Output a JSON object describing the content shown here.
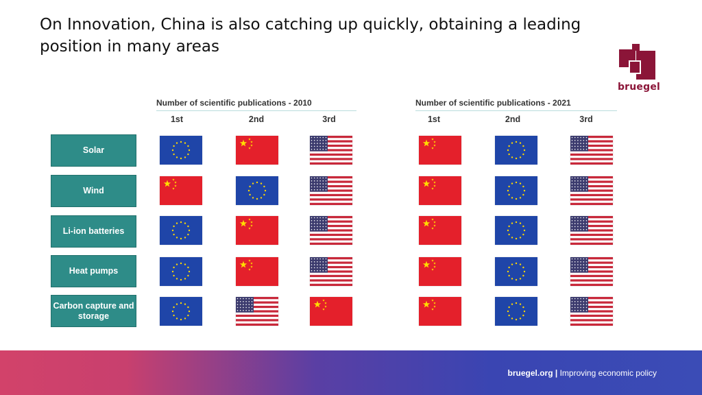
{
  "slide": {
    "title": "On Innovation, China is also catching up quickly, obtaining a leading position in many areas",
    "logo_text": "bruegel",
    "footer_site": "bruegel.org",
    "footer_separator": "|",
    "footer_tagline": "Improving economic policy"
  },
  "colors": {
    "teal": "#2e8c88",
    "brand": "#8b1538"
  },
  "table": {
    "categories": [
      "Solar",
      "Wind",
      "Li-ion batteries",
      "Heat pumps",
      "Carbon capture and storage"
    ],
    "panels": [
      {
        "title": "Number of scientific publications - 2010",
        "ranks": [
          "1st",
          "2nd",
          "3rd"
        ],
        "rows": [
          [
            "eu-flag",
            "china-flag",
            "us-flag"
          ],
          [
            "china-flag",
            "eu-flag",
            "us-flag"
          ],
          [
            "eu-flag",
            "china-flag",
            "us-flag"
          ],
          [
            "eu-flag",
            "china-flag",
            "us-flag"
          ],
          [
            "eu-flag",
            "us-flag",
            "china-flag"
          ]
        ]
      },
      {
        "title": "Number of scientific publications - 2021",
        "ranks": [
          "1st",
          "2nd",
          "3rd"
        ],
        "rows": [
          [
            "china-flag",
            "eu-flag",
            "us-flag"
          ],
          [
            "china-flag",
            "eu-flag",
            "us-flag"
          ],
          [
            "china-flag",
            "eu-flag",
            "us-flag"
          ],
          [
            "china-flag",
            "eu-flag",
            "us-flag"
          ],
          [
            "china-flag",
            "eu-flag",
            "us-flag"
          ]
        ]
      }
    ]
  }
}
